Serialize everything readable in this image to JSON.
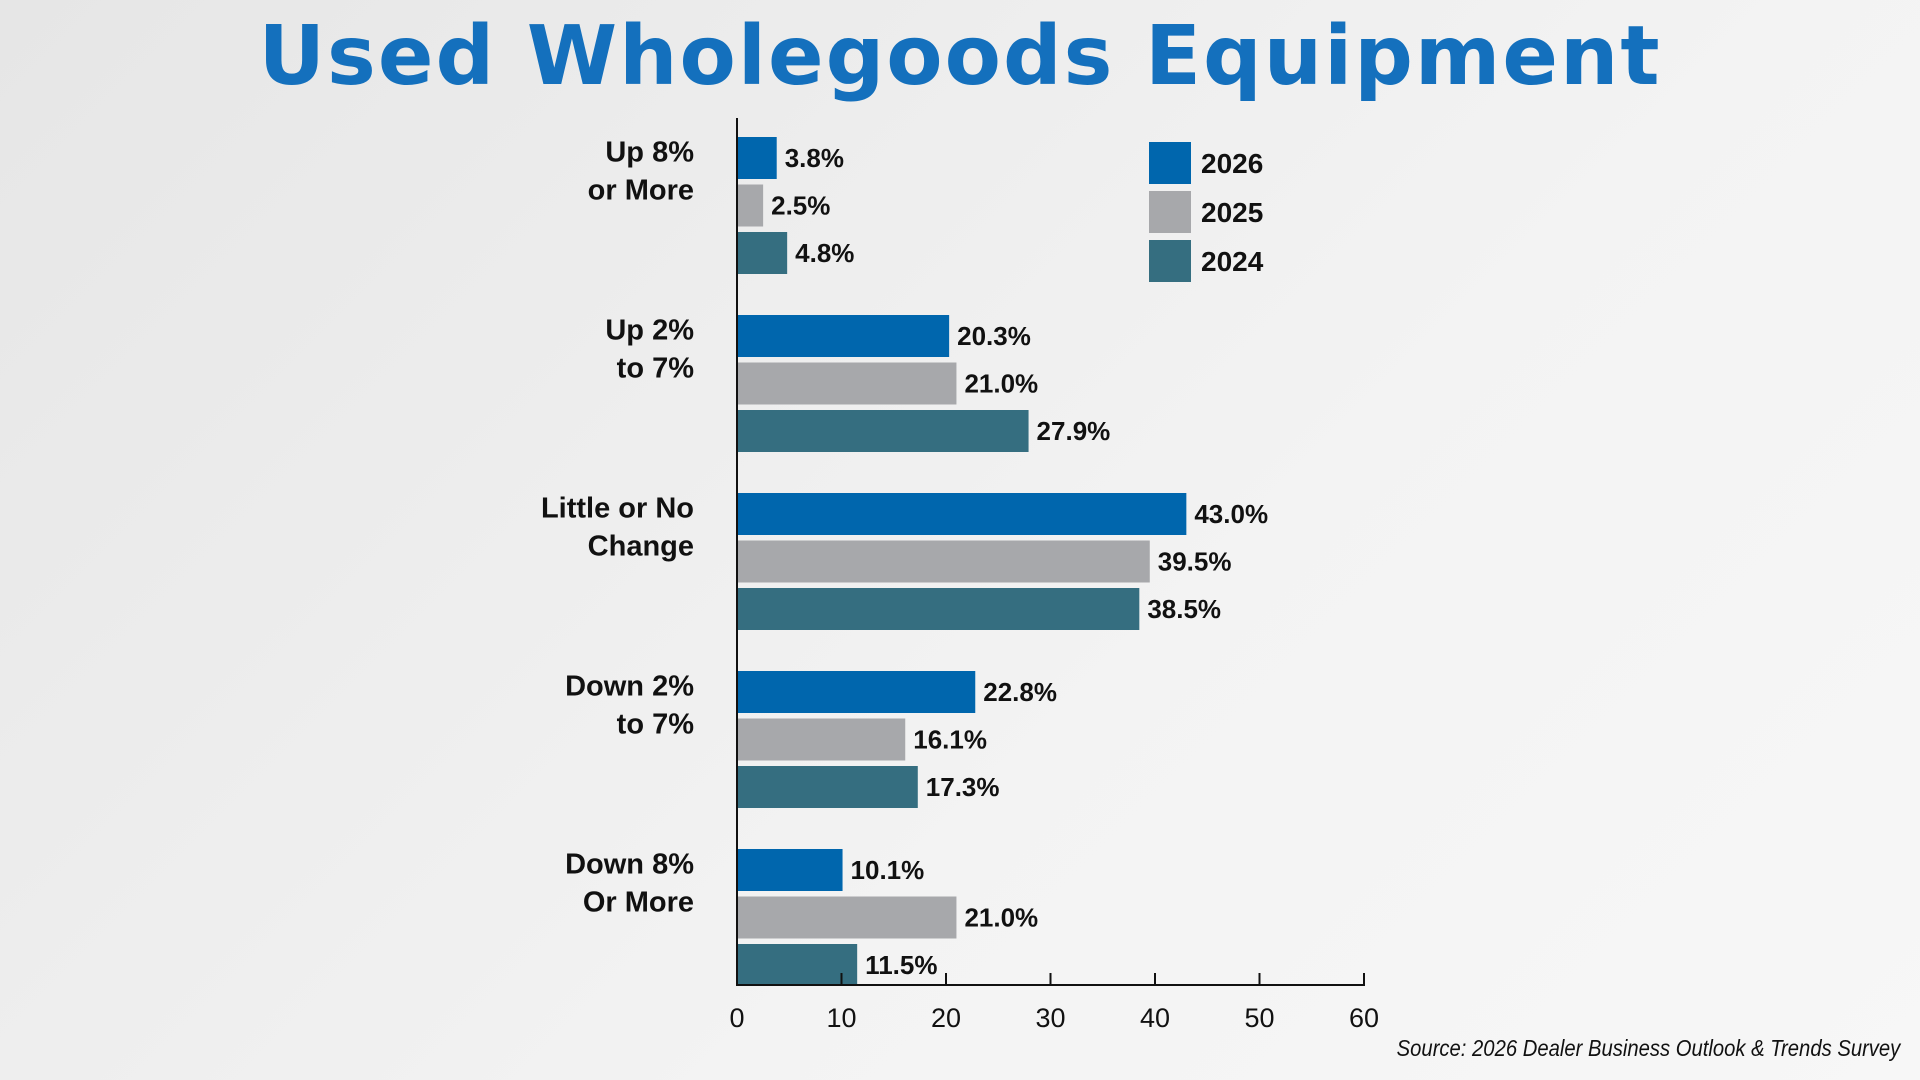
{
  "title": "Used Wholegoods Equipment",
  "source": "Source: 2026 Dealer Business Outlook & Trends Survey",
  "colors": {
    "title": "#1470bd",
    "2026": "#0066ad",
    "2025": "#a7a8ab",
    "2024": "#356e80"
  },
  "chart_data": {
    "type": "bar",
    "orientation": "horizontal",
    "title": "Used Wholegoods Equipment",
    "categories": [
      [
        "Up 8%",
        "or More"
      ],
      [
        "Up 2%",
        "to 7%"
      ],
      [
        "Little or No",
        "Change"
      ],
      [
        "Down 2%",
        "to 7%"
      ],
      [
        "Down 8%",
        "Or More"
      ]
    ],
    "series": [
      {
        "name": "2026",
        "color": "#0066ad",
        "values": [
          3.8,
          20.3,
          43.0,
          22.8,
          10.1
        ],
        "labels": [
          "3.8%",
          "20.3%",
          "43.0%",
          "22.8%",
          "10.1%"
        ]
      },
      {
        "name": "2025",
        "color": "#a7a8ab",
        "values": [
          2.5,
          21.0,
          39.5,
          16.1,
          21.0
        ],
        "labels": [
          "2.5%",
          "21.0%",
          "39.5%",
          "16.1%",
          "21.0%"
        ]
      },
      {
        "name": "2024",
        "color": "#356e80",
        "values": [
          4.8,
          27.9,
          38.5,
          17.3,
          11.5
        ],
        "labels": [
          "4.8%",
          "27.9%",
          "38.5%",
          "17.3%",
          "11.5%"
        ]
      }
    ],
    "xlim": [
      0,
      60
    ],
    "xticks": [
      "0",
      "10",
      "20",
      "30",
      "40",
      "50",
      "60"
    ],
    "xlabel": "",
    "ylabel": "",
    "legend": "top-right",
    "grid": false
  }
}
